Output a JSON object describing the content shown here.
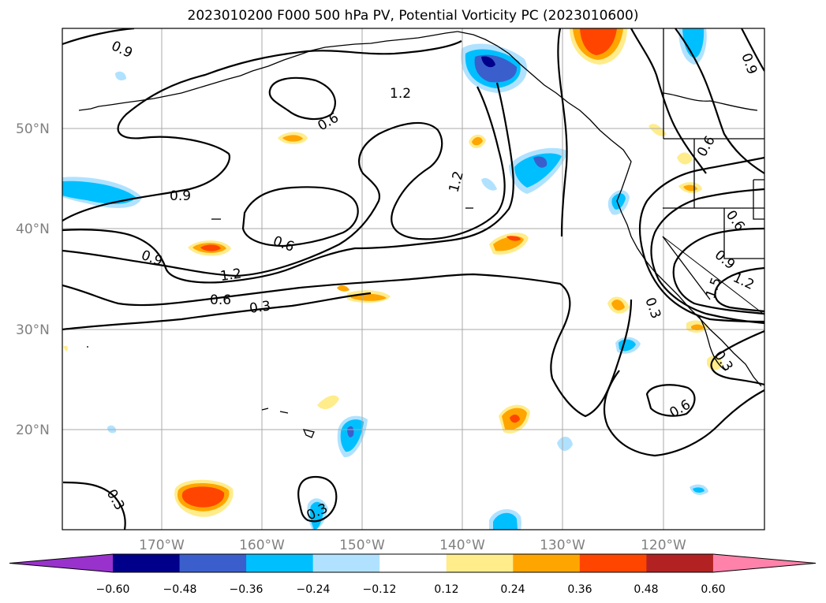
{
  "title": "2023010200 F000 500 hPa PV, Potential Vorticity PC (2023010600)",
  "map": {
    "lon_labels": [
      "170°W",
      "160°W",
      "150°W",
      "140°W",
      "130°W",
      "120°W"
    ],
    "lat_labels": [
      "50°N",
      "40°N",
      "30°N",
      "20°N"
    ],
    "contour_labels": [
      "0.9",
      "0.9",
      "0.9",
      "0.9",
      "0.9",
      "1.2",
      "1.2",
      "1.2",
      "1.2",
      "0.6",
      "0.6",
      "0.6",
      "0.6",
      "0.6",
      "0.6",
      "0.3",
      "0.3",
      "0.3",
      "0.3",
      "0.3",
      "1.5"
    ]
  },
  "colorbar": {
    "ticks": [
      "−0.60",
      "−0.48",
      "−0.36",
      "−0.24",
      "−0.12",
      "0.12",
      "0.24",
      "0.36",
      "0.48",
      "0.60"
    ],
    "colors": [
      "#9932cc",
      "#00008b",
      "#3a5fcd",
      "#00bfff",
      "#b0e2ff",
      "#ffffff",
      "#ffec8b",
      "#ffa500",
      "#ff4500",
      "#b22222",
      "#ff82ab"
    ]
  }
}
